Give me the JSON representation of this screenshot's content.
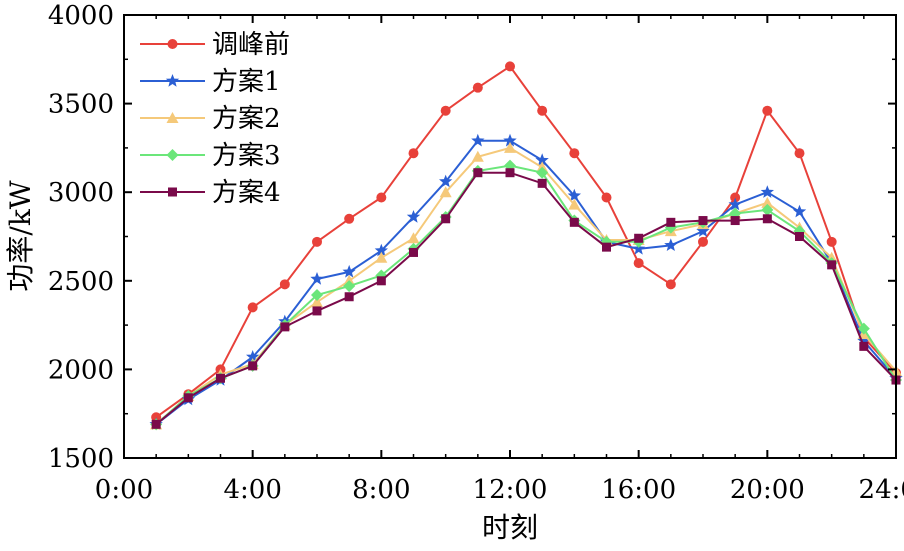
{
  "chart_data": {
    "type": "line",
    "title": "",
    "xlabel": "时刻",
    "ylabel": "功率/kW",
    "xlim": [
      0,
      24
    ],
    "ylim": [
      1500,
      4000
    ],
    "xticks": [
      0,
      4,
      8,
      12,
      16,
      20,
      24
    ],
    "xtick_labels": [
      "0:00",
      "4:00",
      "8:00",
      "12:00",
      "16:00",
      "20:00",
      "24:00"
    ],
    "yticks": [
      1500,
      2000,
      2500,
      3000,
      3500,
      4000
    ],
    "ytick_labels": [
      "1500",
      "2000",
      "2500",
      "3000",
      "3500",
      "4000"
    ],
    "grid": false,
    "legend_position": "top-left",
    "x": [
      1,
      2,
      3,
      4,
      5,
      6,
      7,
      8,
      9,
      10,
      11,
      12,
      13,
      14,
      15,
      16,
      17,
      18,
      19,
      20,
      21,
      22,
      23,
      24
    ],
    "series": [
      {
        "name": "调峰前",
        "color": "#e8413a",
        "marker": "circle",
        "values": [
          1730,
          1860,
          2000,
          2350,
          2480,
          2720,
          2850,
          2970,
          3220,
          3460,
          3590,
          3710,
          3460,
          3220,
          2970,
          2600,
          2480,
          2720,
          2970,
          3460,
          3220,
          2720,
          2180,
          1980
        ]
      },
      {
        "name": "方案1",
        "color": "#2b5fd4",
        "marker": "star",
        "values": [
          1690,
          1830,
          1940,
          2070,
          2270,
          2510,
          2550,
          2670,
          2860,
          3060,
          3290,
          3290,
          3180,
          2980,
          2720,
          2680,
          2700,
          2780,
          2930,
          3000,
          2890,
          2600,
          2160,
          1950
        ]
      },
      {
        "name": "方案2",
        "color": "#f5c97a",
        "marker": "triangle",
        "values": [
          1690,
          1850,
          1970,
          2030,
          2250,
          2380,
          2500,
          2630,
          2740,
          3000,
          3200,
          3250,
          3140,
          2930,
          2730,
          2730,
          2780,
          2820,
          2880,
          2940,
          2800,
          2630,
          2200,
          1990
        ]
      },
      {
        "name": "方案3",
        "color": "#6be67a",
        "marker": "diamond",
        "values": [
          1690,
          1850,
          1950,
          2020,
          2250,
          2420,
          2470,
          2530,
          2680,
          2860,
          3120,
          3150,
          3110,
          2840,
          2720,
          2720,
          2800,
          2830,
          2880,
          2900,
          2780,
          2600,
          2230,
          1940
        ]
      },
      {
        "name": "方案4",
        "color": "#7a0a4a",
        "marker": "square",
        "values": [
          1690,
          1840,
          1950,
          2020,
          2240,
          2330,
          2410,
          2500,
          2660,
          2850,
          3110,
          3110,
          3050,
          2830,
          2690,
          2740,
          2830,
          2840,
          2840,
          2850,
          2750,
          2590,
          2130,
          1940
        ]
      }
    ]
  }
}
